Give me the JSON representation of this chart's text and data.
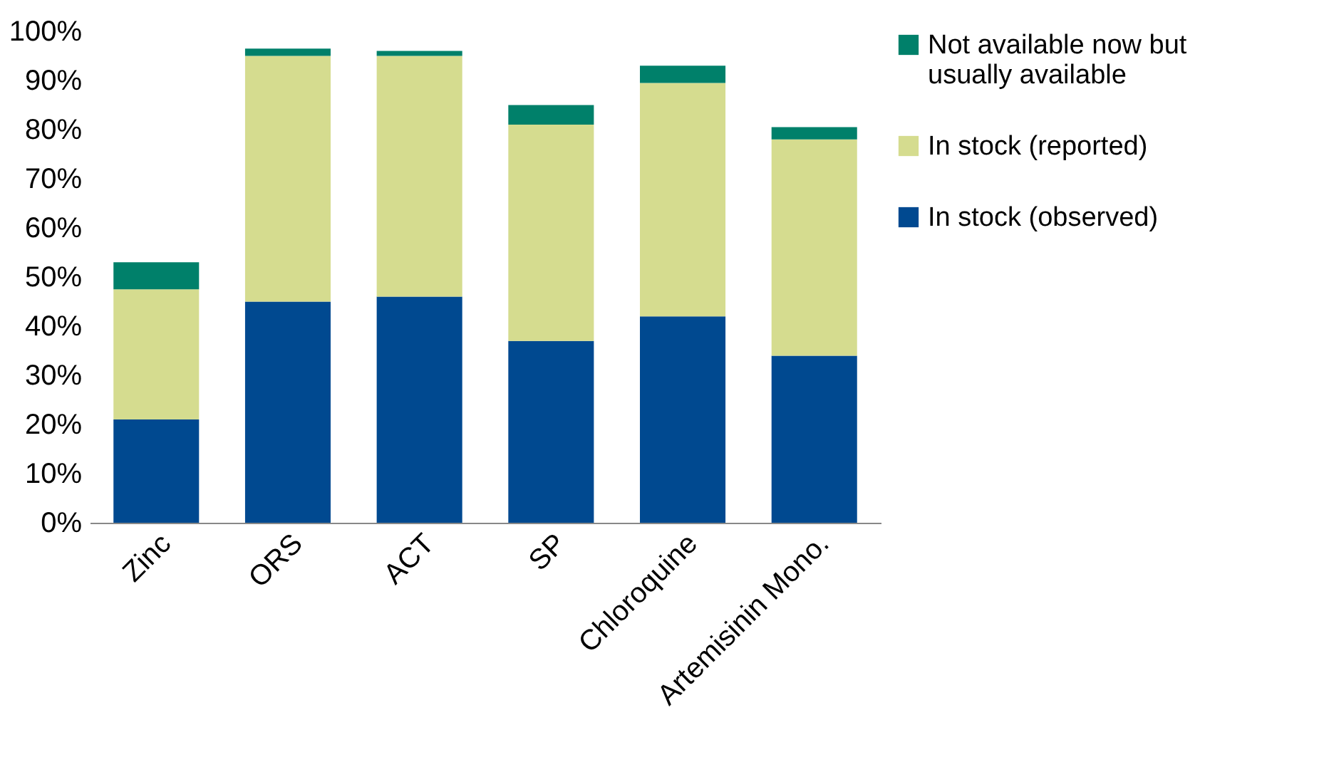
{
  "chart_data": {
    "type": "bar",
    "stacked": true,
    "categories": [
      "Zinc",
      "ORS",
      "ACT",
      "SP",
      "Chloroquine",
      "Artemisinin Mono."
    ],
    "series": [
      {
        "name": "In stock (observed)",
        "color": "#004990",
        "values": [
          21,
          45,
          46,
          37,
          42,
          34
        ]
      },
      {
        "name": "In stock (reported)",
        "color": "#d5dc8f",
        "values": [
          26.5,
          50,
          49,
          44,
          47.5,
          44
        ]
      },
      {
        "name": "Not available now but usually available",
        "color": "#00806a",
        "values": [
          5.5,
          1.5,
          1,
          4,
          3.5,
          2.5
        ]
      }
    ],
    "ylim": [
      0,
      100
    ],
    "yticks": [
      {
        "value": 0,
        "label": "0%"
      },
      {
        "value": 10,
        "label": "10%"
      },
      {
        "value": 20,
        "label": "20%"
      },
      {
        "value": 30,
        "label": "30%"
      },
      {
        "value": 40,
        "label": "40%"
      },
      {
        "value": 50,
        "label": "50%"
      },
      {
        "value": 60,
        "label": "60%"
      },
      {
        "value": 70,
        "label": "70%"
      },
      {
        "value": 80,
        "label": "80%"
      },
      {
        "value": 90,
        "label": "90%"
      },
      {
        "value": 100,
        "label": "100%"
      }
    ],
    "grid": false,
    "legend": "right"
  }
}
